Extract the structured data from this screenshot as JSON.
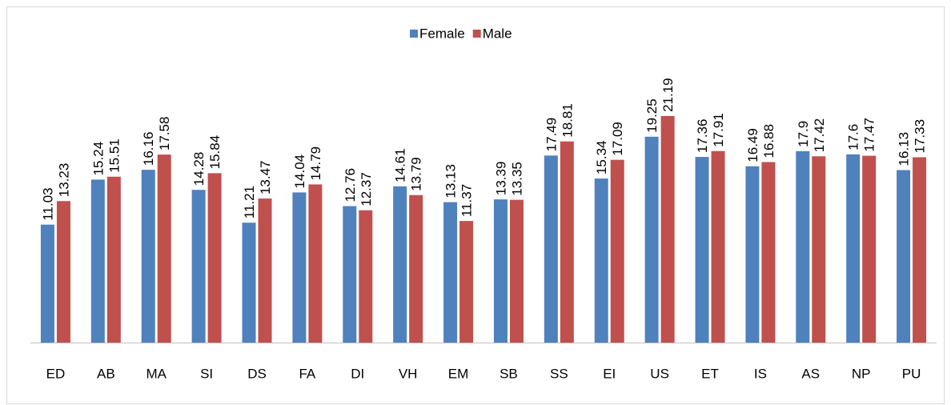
{
  "chart_data": {
    "type": "bar",
    "categories": [
      "ED",
      "AB",
      "MA",
      "SI",
      "DS",
      "FA",
      "DI",
      "VH",
      "EM",
      "SB",
      "SS",
      "EI",
      "US",
      "ET",
      "IS",
      "AS",
      "NP",
      "PU"
    ],
    "series": [
      {
        "name": "Female",
        "color": "#4f81bd",
        "values": [
          11.03,
          15.24,
          16.16,
          14.28,
          11.21,
          14.04,
          12.76,
          14.61,
          13.13,
          13.39,
          17.49,
          15.34,
          19.25,
          17.36,
          16.49,
          17.9,
          17.6,
          16.13
        ]
      },
      {
        "name": "Male",
        "color": "#c0504d",
        "values": [
          13.23,
          15.51,
          17.58,
          15.84,
          13.47,
          14.79,
          12.37,
          13.79,
          11.37,
          13.35,
          18.81,
          17.09,
          21.19,
          17.91,
          16.88,
          17.42,
          17.47,
          17.33
        ]
      }
    ],
    "ylim": [
      0,
      25
    ],
    "legend": "top"
  }
}
